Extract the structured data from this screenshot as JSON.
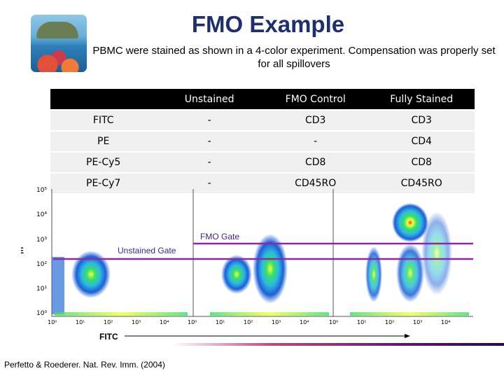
{
  "title": "FMO Example",
  "subtitle": "PBMC were stained as shown in a 4-color experiment.  Compensation was properly set for all spillovers",
  "logo": {
    "icon": "ocean-reef-picture"
  },
  "table": {
    "headers": [
      "",
      "Unstained",
      "FMO Control",
      "Fully Stained"
    ],
    "rows": [
      {
        "marker": "FITC",
        "unstained": "-",
        "fmo": "CD3",
        "full": "CD3"
      },
      {
        "marker": "PE",
        "unstained": "-",
        "fmo": "-",
        "full": "CD4"
      },
      {
        "marker": "PE-Cy5",
        "unstained": "-",
        "fmo": "CD8",
        "full": "CD8"
      },
      {
        "marker": "PE-Cy7",
        "unstained": "-",
        "fmo": "CD45RO",
        "full": "CD45RO"
      }
    ]
  },
  "plot": {
    "xlabel": "FITC",
    "ylabel": "PE",
    "ticks": [
      "10⁰",
      "10¹",
      "10²",
      "10³",
      "10⁴",
      "10⁵"
    ],
    "gate_labels": {
      "unstained": "Unstained Gate",
      "fmo": "FMO Gate"
    },
    "gate_color": "#8a2ca0"
  },
  "footer": "Perfetto & Roederer. Nat. Rev. Imm. (2004)"
}
